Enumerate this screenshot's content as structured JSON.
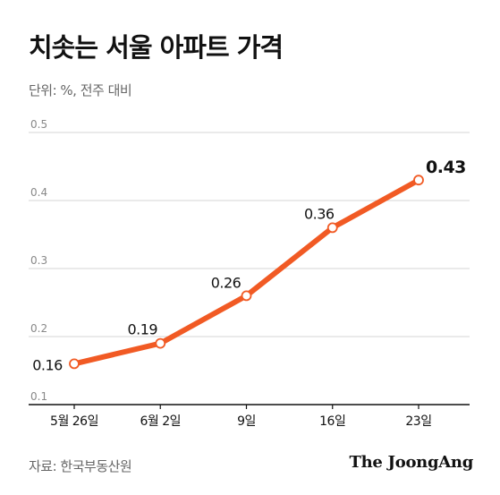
{
  "title": "치솟는 서울 아파트 가격",
  "unit_text": "단위: %, 전주 대비",
  "source": "자료: 한국부동산원",
  "logo": "The JoongAng",
  "colors": {
    "line": "#f15a24",
    "grid": "#d5d5d5",
    "axis": "#111111",
    "tick_text": "#888888"
  },
  "chart_data": {
    "type": "line",
    "title": "치솟는 서울 아파트 가격",
    "ylabel": "",
    "xlabel": "",
    "categories": [
      "5월 26일",
      "6월 2일",
      "9일",
      "16일",
      "23일"
    ],
    "series": [
      {
        "values": [
          0.16,
          0.19,
          0.26,
          0.36,
          0.43
        ]
      }
    ],
    "data_labels": [
      "0.16",
      "0.19",
      "0.26",
      "0.36",
      "0.43"
    ],
    "ylim": [
      0.1,
      0.5
    ],
    "yticks": [
      "0.1",
      "0.2",
      "0.3",
      "0.4",
      "0.5"
    ],
    "grid": true,
    "legend": "none"
  }
}
